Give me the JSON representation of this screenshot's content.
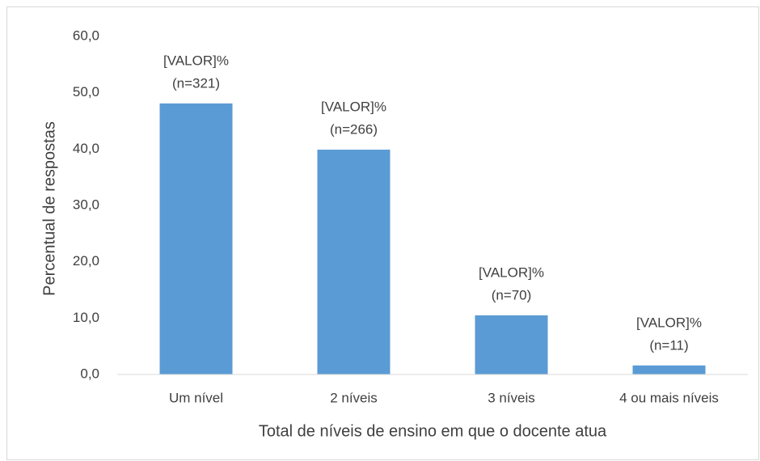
{
  "chart_data": {
    "type": "bar",
    "categories": [
      "Um nível",
      "2 níveis",
      "3 níveis",
      "4 ou mais níveis"
    ],
    "values": [
      48.1,
      39.9,
      10.5,
      1.6
    ],
    "value_labels": [
      "[VALOR]%",
      "[VALOR]%",
      "[VALOR]%",
      "[VALOR]%"
    ],
    "count_labels": [
      "(n=321)",
      "(n=266)",
      "(n=70)",
      "(n=11)"
    ],
    "color": "#5b9bd5",
    "xlabel": "Total de níveis de ensino em que o docente atua",
    "ylabel": "Percentual de respostas",
    "ylim": [
      0,
      60
    ],
    "yticks": [
      {
        "value": 0,
        "label": "0,0"
      },
      {
        "value": 10,
        "label": "10,0"
      },
      {
        "value": 20,
        "label": "20,0"
      },
      {
        "value": 30,
        "label": "30,0"
      },
      {
        "value": 40,
        "label": "40,0"
      },
      {
        "value": 50,
        "label": "50,0"
      },
      {
        "value": 60,
        "label": "60,0"
      }
    ],
    "grid": false
  }
}
